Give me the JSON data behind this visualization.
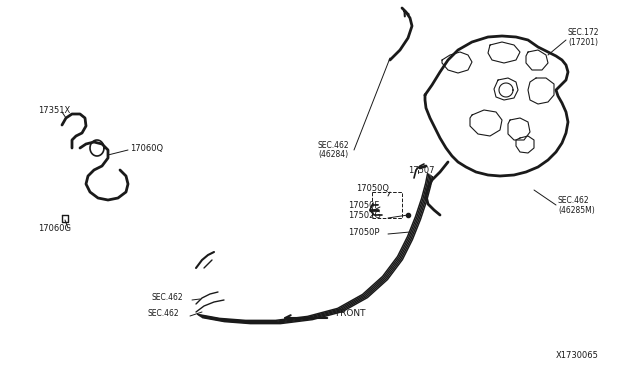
{
  "bg_color": "#ffffff",
  "line_color": "#1a1a1a",
  "text_color": "#1a1a1a",
  "diagram_id": "X1730065",
  "fig_w": 6.4,
  "fig_h": 3.72,
  "xlim": [
    0,
    640
  ],
  "ylim": [
    0,
    372
  ]
}
